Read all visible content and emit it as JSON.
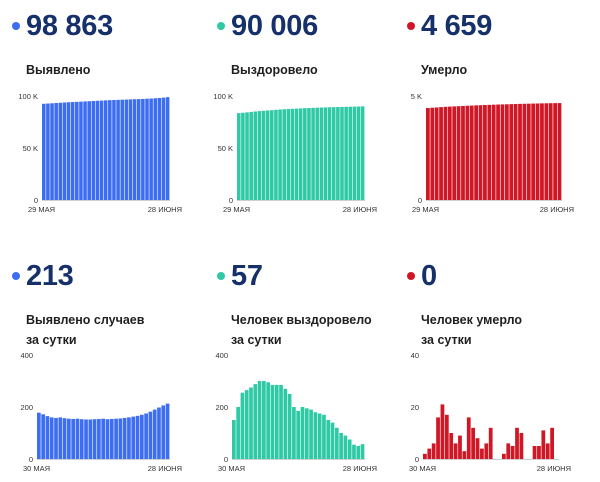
{
  "panels": [
    {
      "value": "98 863",
      "label_lines": [
        "Выявлено"
      ],
      "color": "#3d6ef2",
      "chart_data": {
        "type": "bar",
        "x_start_label": "29 МАЯ",
        "x_end_label": "28 ИЮНЯ",
        "yticks": [
          {
            "v": 0,
            "t": "0"
          },
          {
            "v": 50000,
            "t": "50 K"
          },
          {
            "v": 100000,
            "t": "100 K"
          }
        ],
        "ylim": [
          0,
          100000
        ],
        "values": [
          92500,
          92750,
          93000,
          93250,
          93500,
          93750,
          94000,
          94200,
          94400,
          94600,
          94800,
          95000,
          95200,
          95400,
          95600,
          95800,
          96000,
          96150,
          96300,
          96450,
          96600,
          96750,
          96900,
          97050,
          97200,
          97400,
          97600,
          97850,
          98100,
          98450,
          98863
        ]
      }
    },
    {
      "value": "90 006",
      "label_lines": [
        "Выздоровело"
      ],
      "color": "#2fc9a6",
      "chart_data": {
        "type": "bar",
        "x_start_label": "29 МАЯ",
        "x_end_label": "28 ИЮНЯ",
        "yticks": [
          {
            "v": 0,
            "t": "0"
          },
          {
            "v": 50000,
            "t": "50 K"
          },
          {
            "v": 100000,
            "t": "100 K"
          }
        ],
        "ylim": [
          0,
          100000
        ],
        "values": [
          83500,
          83900,
          84300,
          84700,
          85100,
          85500,
          85800,
          86100,
          86400,
          86700,
          87000,
          87300,
          87500,
          87700,
          87900,
          88100,
          88300,
          88450,
          88600,
          88750,
          88900,
          89050,
          89200,
          89300,
          89400,
          89500,
          89600,
          89700,
          89800,
          89900,
          90006
        ]
      }
    },
    {
      "value": "4 659",
      "label_lines": [
        "Умерло"
      ],
      "color": "#d01726",
      "chart_data": {
        "type": "bar",
        "x_start_label": "29 МАЯ",
        "x_end_label": "28 ИЮНЯ",
        "yticks": [
          {
            "v": 0,
            "t": "0"
          },
          {
            "v": 5000,
            "t": "5 K"
          }
        ],
        "ylim": [
          0,
          5000
        ],
        "values": [
          4420,
          4435,
          4450,
          4465,
          4480,
          4490,
          4500,
          4510,
          4520,
          4530,
          4540,
          4550,
          4558,
          4566,
          4574,
          4582,
          4590,
          4596,
          4602,
          4608,
          4614,
          4620,
          4626,
          4631,
          4636,
          4641,
          4646,
          4650,
          4654,
          4657,
          4659
        ]
      }
    },
    {
      "value": "213",
      "label_lines": [
        "Выявлено случаев",
        "за сутки"
      ],
      "color": "#3d6ef2",
      "chart_data": {
        "type": "bar",
        "x_start_label": "30 МАЯ",
        "x_end_label": "28 ИЮНЯ",
        "yticks": [
          {
            "v": 0,
            "t": "0"
          },
          {
            "v": 200,
            "t": "200"
          },
          {
            "v": 400,
            "t": "400"
          }
        ],
        "ylim": [
          0,
          400
        ],
        "values": [
          178,
          172,
          165,
          160,
          158,
          160,
          157,
          155,
          154,
          155,
          153,
          152,
          152,
          153,
          154,
          155,
          153,
          154,
          155,
          156,
          158,
          160,
          163,
          166,
          170,
          175,
          182,
          190,
          198,
          206,
          213
        ]
      }
    },
    {
      "value": "57",
      "label_lines": [
        "Человек выздоровело",
        "за сутки"
      ],
      "color": "#2fc9a6",
      "chart_data": {
        "type": "bar",
        "x_start_label": "30 МАЯ",
        "x_end_label": "28 ИЮНЯ",
        "yticks": [
          {
            "v": 0,
            "t": "0"
          },
          {
            "v": 200,
            "t": "200"
          },
          {
            "v": 400,
            "t": "400"
          }
        ],
        "ylim": [
          0,
          400
        ],
        "values": [
          150,
          200,
          255,
          265,
          275,
          288,
          300,
          300,
          295,
          285,
          285,
          285,
          270,
          250,
          200,
          185,
          200,
          195,
          190,
          180,
          175,
          170,
          150,
          140,
          120,
          100,
          90,
          75,
          55,
          50,
          57
        ]
      }
    },
    {
      "value": "0",
      "label_lines": [
        "Человек умерло",
        "за сутки"
      ],
      "color": "#d01726",
      "chart_data": {
        "type": "bar",
        "x_start_label": "30 МАЯ",
        "x_end_label": "28 ИЮНЯ",
        "yticks": [
          {
            "v": 0,
            "t": "0"
          },
          {
            "v": 20,
            "t": "20"
          },
          {
            "v": 40,
            "t": "40"
          }
        ],
        "ylim": [
          0,
          40
        ],
        "values": [
          2,
          4,
          6,
          16,
          21,
          17,
          10,
          6,
          9,
          3,
          16,
          12,
          8,
          4,
          6,
          12,
          0,
          0,
          2,
          6,
          5,
          12,
          10,
          0,
          0,
          5,
          5,
          11,
          6,
          12,
          0
        ]
      }
    }
  ]
}
